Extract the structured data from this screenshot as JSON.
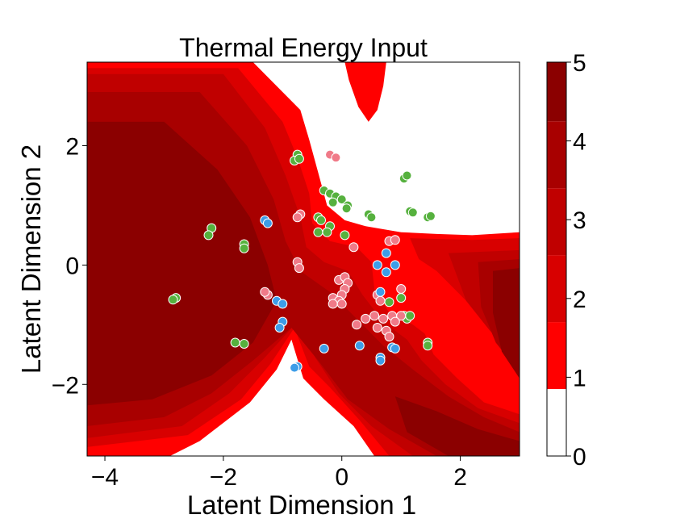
{
  "chart_data": {
    "type": "contour-scatter",
    "title": "Thermal Energy Input",
    "xlabel": "Latent Dimension 1",
    "ylabel": "Latent Dimension 2",
    "xlim": [
      -4.3,
      3.0
    ],
    "ylim": [
      -3.2,
      3.4
    ],
    "x_ticks": [
      -4,
      -2,
      0,
      2
    ],
    "y_ticks": [
      -2,
      0,
      2
    ],
    "x_tick_labels": [
      "−4",
      "−2",
      "0",
      "2"
    ],
    "y_tick_labels": [
      "−2",
      "0",
      "2"
    ],
    "grid": false,
    "colorbar": {
      "ticks": [
        0,
        1,
        2,
        3,
        4,
        5
      ],
      "tick_labels": [
        "0",
        "1",
        "2",
        "3",
        "4",
        "5"
      ],
      "range": [
        0,
        5
      ],
      "levels": [
        {
          "from": 0.0,
          "to": 0.85,
          "color": "#ffffff"
        },
        {
          "from": 0.85,
          "to": 1.7,
          "color": "#ff0000"
        },
        {
          "from": 1.7,
          "to": 2.55,
          "color": "#d80000"
        },
        {
          "from": 2.55,
          "to": 3.4,
          "color": "#c00000"
        },
        {
          "from": 3.4,
          "to": 4.25,
          "color": "#a80000"
        },
        {
          "from": 4.25,
          "to": 5.0,
          "color": "#8b0000"
        }
      ]
    },
    "contour_regions": [
      {
        "level": 1,
        "color": "#ff0000",
        "points": [
          [
            -4.3,
            3.4
          ],
          [
            -1.5,
            3.4
          ],
          [
            -0.7,
            2.6
          ],
          [
            -0.55,
            2.1
          ],
          [
            -0.4,
            1.55
          ],
          [
            -0.25,
            1.0
          ],
          [
            0.05,
            0.75
          ],
          [
            0.4,
            0.65
          ],
          [
            1.0,
            0.55
          ],
          [
            1.6,
            0.52
          ],
          [
            2.2,
            0.5
          ],
          [
            3.0,
            0.55
          ],
          [
            3.0,
            -3.2
          ],
          [
            0.55,
            -3.2
          ],
          [
            0.2,
            -2.7
          ],
          [
            -0.3,
            -2.25
          ],
          [
            -0.65,
            -1.9
          ],
          [
            -0.85,
            -1.25
          ],
          [
            -1.1,
            -1.75
          ],
          [
            -1.55,
            -2.3
          ],
          [
            -2.4,
            -2.95
          ],
          [
            -2.9,
            -3.2
          ],
          [
            -4.3,
            -3.2
          ]
        ]
      },
      {
        "level": 1,
        "color": "#ff0000",
        "points": [
          [
            0.05,
            3.4
          ],
          [
            0.75,
            3.4
          ],
          [
            0.7,
            3.0
          ],
          [
            0.6,
            2.6
          ],
          [
            0.45,
            2.4
          ],
          [
            0.28,
            2.65
          ],
          [
            0.12,
            3.1
          ]
        ]
      },
      {
        "level": 2,
        "color": "#d80000",
        "points": [
          [
            -4.3,
            3.3
          ],
          [
            -1.75,
            3.3
          ],
          [
            -1.0,
            2.4
          ],
          [
            -0.75,
            1.8
          ],
          [
            -0.55,
            1.2
          ],
          [
            -0.5,
            0.7
          ],
          [
            -0.2,
            0.4
          ],
          [
            0.25,
            0.3
          ],
          [
            0.5,
            0.05
          ],
          [
            0.55,
            -0.4
          ],
          [
            0.8,
            -0.8
          ],
          [
            1.2,
            -1.0
          ],
          [
            1.4,
            -1.15
          ],
          [
            1.55,
            -1.5
          ],
          [
            1.95,
            -1.9
          ],
          [
            2.4,
            -2.3
          ],
          [
            3.0,
            -2.5
          ],
          [
            3.0,
            -3.2
          ],
          [
            0.8,
            -3.2
          ],
          [
            0.3,
            -2.6
          ],
          [
            -0.2,
            -2.05
          ],
          [
            -0.55,
            -1.7
          ],
          [
            -0.8,
            -1.05
          ],
          [
            -1.2,
            -1.65
          ],
          [
            -1.7,
            -2.25
          ],
          [
            -2.6,
            -2.85
          ],
          [
            -4.3,
            -3.05
          ]
        ]
      },
      {
        "level": 2,
        "color": "#d80000",
        "points": [
          [
            1.15,
            0.45
          ],
          [
            2.2,
            0.42
          ],
          [
            3.0,
            0.45
          ],
          [
            3.0,
            -1.3
          ],
          [
            2.4,
            -0.9
          ],
          [
            2.0,
            -0.5
          ],
          [
            1.6,
            -0.1
          ],
          [
            1.3,
            0.1
          ]
        ]
      },
      {
        "level": 3,
        "color": "#c00000",
        "points": [
          [
            -4.3,
            3.2
          ],
          [
            -2.0,
            3.2
          ],
          [
            -1.3,
            2.3
          ],
          [
            -0.95,
            1.5
          ],
          [
            -0.7,
            0.8
          ],
          [
            -0.6,
            0.3
          ],
          [
            -0.3,
            0.05
          ],
          [
            0.1,
            -0.1
          ],
          [
            0.35,
            -0.5
          ],
          [
            0.7,
            -0.95
          ],
          [
            1.1,
            -1.25
          ],
          [
            1.35,
            -1.6
          ],
          [
            1.75,
            -2.0
          ],
          [
            2.3,
            -2.4
          ],
          [
            3.0,
            -2.65
          ],
          [
            3.0,
            -3.2
          ],
          [
            1.2,
            -3.2
          ],
          [
            0.5,
            -2.7
          ],
          [
            -0.05,
            -2.15
          ],
          [
            -0.45,
            -1.55
          ],
          [
            -0.75,
            -0.95
          ],
          [
            -1.3,
            -1.55
          ],
          [
            -1.9,
            -2.15
          ],
          [
            -2.7,
            -2.7
          ],
          [
            -4.3,
            -2.9
          ]
        ]
      },
      {
        "level": 3,
        "color": "#c00000",
        "points": [
          [
            1.8,
            0.2
          ],
          [
            3.0,
            0.25
          ],
          [
            3.0,
            -1.6
          ],
          [
            2.5,
            -1.1
          ],
          [
            2.1,
            -0.6
          ]
        ]
      },
      {
        "level": 4,
        "color": "#a80000",
        "points": [
          [
            -4.3,
            2.9
          ],
          [
            -2.4,
            2.9
          ],
          [
            -1.6,
            2.0
          ],
          [
            -1.15,
            1.1
          ],
          [
            -0.95,
            0.4
          ],
          [
            -0.7,
            -0.1
          ],
          [
            -0.2,
            -0.45
          ],
          [
            0.3,
            -0.95
          ],
          [
            0.7,
            -1.35
          ],
          [
            1.2,
            -1.75
          ],
          [
            1.8,
            -2.2
          ],
          [
            2.4,
            -2.55
          ],
          [
            3.0,
            -2.8
          ],
          [
            3.0,
            -3.2
          ],
          [
            1.6,
            -3.2
          ],
          [
            0.8,
            -2.75
          ],
          [
            0.1,
            -2.25
          ],
          [
            -0.4,
            -1.6
          ],
          [
            -0.85,
            -1.05
          ],
          [
            -1.5,
            -1.6
          ],
          [
            -2.2,
            -2.15
          ],
          [
            -3.0,
            -2.55
          ],
          [
            -4.3,
            -2.7
          ]
        ]
      },
      {
        "level": 4,
        "color": "#a80000",
        "points": [
          [
            2.3,
            0.05
          ],
          [
            3.0,
            0.1
          ],
          [
            3.0,
            -1.8
          ],
          [
            2.6,
            -1.3
          ],
          [
            2.35,
            -0.7
          ]
        ]
      },
      {
        "level": 5,
        "color": "#8b0000",
        "points": [
          [
            -4.3,
            2.4
          ],
          [
            -3.0,
            2.4
          ],
          [
            -2.1,
            1.6
          ],
          [
            -1.55,
            0.8
          ],
          [
            -1.25,
            0.0
          ],
          [
            -1.1,
            -0.6
          ],
          [
            -1.5,
            -1.3
          ],
          [
            -2.2,
            -1.85
          ],
          [
            -3.2,
            -2.25
          ],
          [
            -4.3,
            -2.35
          ]
        ]
      },
      {
        "level": 5,
        "color": "#8b0000",
        "points": [
          [
            0.9,
            -2.2
          ],
          [
            1.6,
            -2.45
          ],
          [
            2.3,
            -2.75
          ],
          [
            3.0,
            -2.95
          ],
          [
            3.0,
            -3.2
          ],
          [
            1.8,
            -3.2
          ],
          [
            1.1,
            -2.8
          ]
        ]
      },
      {
        "level": 5,
        "color": "#8b0000",
        "points": [
          [
            2.55,
            -0.1
          ],
          [
            3.0,
            -0.05
          ],
          [
            3.0,
            -1.9
          ],
          [
            2.7,
            -1.45
          ],
          [
            2.55,
            -0.8
          ]
        ]
      }
    ],
    "series": [
      {
        "color": "#56b13e",
        "points": [
          [
            -0.75,
            1.85
          ],
          [
            -0.8,
            1.75
          ],
          [
            -0.72,
            1.78
          ],
          [
            -0.3,
            1.25
          ],
          [
            -0.2,
            1.2
          ],
          [
            -0.1,
            1.15
          ],
          [
            -0.15,
            1.05
          ],
          [
            0.0,
            1.1
          ],
          [
            0.1,
            1.0
          ],
          [
            0.08,
            0.95
          ],
          [
            -0.4,
            0.8
          ],
          [
            -0.35,
            0.75
          ],
          [
            -0.2,
            0.65
          ],
          [
            -0.25,
            0.55
          ],
          [
            -0.4,
            0.55
          ],
          [
            0.05,
            0.5
          ],
          [
            0.45,
            0.85
          ],
          [
            0.5,
            0.8
          ],
          [
            1.05,
            1.45
          ],
          [
            1.1,
            1.5
          ],
          [
            1.15,
            0.9
          ],
          [
            1.2,
            0.88
          ],
          [
            1.45,
            0.8
          ],
          [
            1.5,
            0.82
          ],
          [
            -2.2,
            0.62
          ],
          [
            -2.25,
            0.5
          ],
          [
            -1.65,
            0.35
          ],
          [
            -1.65,
            0.28
          ],
          [
            -2.8,
            -0.55
          ],
          [
            -2.85,
            -0.58
          ],
          [
            -1.8,
            -1.3
          ],
          [
            -1.65,
            -1.32
          ],
          [
            1.0,
            -0.55
          ],
          [
            1.05,
            -0.85
          ],
          [
            1.1,
            -0.9
          ],
          [
            1.15,
            -0.85
          ],
          [
            1.45,
            -1.3
          ],
          [
            1.45,
            -1.35
          ],
          [
            0.8,
            -0.62
          ]
        ]
      },
      {
        "color": "#f07a88",
        "points": [
          [
            -0.2,
            1.85
          ],
          [
            -0.1,
            1.8
          ],
          [
            -0.7,
            0.85
          ],
          [
            -0.75,
            0.8
          ],
          [
            0.2,
            0.3
          ],
          [
            0.8,
            0.4
          ],
          [
            0.9,
            0.42
          ],
          [
            -0.75,
            0.05
          ],
          [
            -0.72,
            -0.05
          ],
          [
            -0.05,
            -0.25
          ],
          [
            0.05,
            -0.2
          ],
          [
            0.1,
            -0.3
          ],
          [
            0.05,
            -0.4
          ],
          [
            0.0,
            -0.5
          ],
          [
            -0.15,
            -0.55
          ],
          [
            -0.05,
            -0.6
          ],
          [
            -0.15,
            -0.65
          ],
          [
            0.0,
            -0.65
          ],
          [
            0.6,
            -0.5
          ],
          [
            0.65,
            -0.6
          ],
          [
            1.0,
            -0.4
          ],
          [
            0.55,
            -0.85
          ],
          [
            0.7,
            -0.9
          ],
          [
            0.85,
            -0.85
          ],
          [
            1.0,
            -0.85
          ],
          [
            0.9,
            -0.95
          ],
          [
            0.4,
            -0.9
          ],
          [
            0.25,
            -1.0
          ],
          [
            0.6,
            -1.05
          ],
          [
            0.75,
            -1.1
          ],
          [
            0.8,
            -1.2
          ],
          [
            -1.25,
            -0.5
          ],
          [
            -1.3,
            -0.45
          ]
        ]
      },
      {
        "color": "#3d9de8",
        "points": [
          [
            -1.3,
            0.75
          ],
          [
            -1.25,
            0.7
          ],
          [
            0.6,
            0.0
          ],
          [
            0.75,
            0.2
          ],
          [
            0.75,
            -0.12
          ],
          [
            0.9,
            0.0
          ],
          [
            0.65,
            -0.45
          ],
          [
            -1.1,
            -0.6
          ],
          [
            -1.0,
            -0.65
          ],
          [
            -1.0,
            -0.95
          ],
          [
            -1.05,
            -1.05
          ],
          [
            -0.75,
            -1.7
          ],
          [
            -0.8,
            -1.72
          ],
          [
            -0.3,
            -1.4
          ],
          [
            0.3,
            -1.35
          ],
          [
            0.65,
            -1.55
          ],
          [
            0.65,
            -1.6
          ],
          [
            0.85,
            -1.38
          ],
          [
            0.9,
            -1.4
          ]
        ]
      }
    ]
  }
}
